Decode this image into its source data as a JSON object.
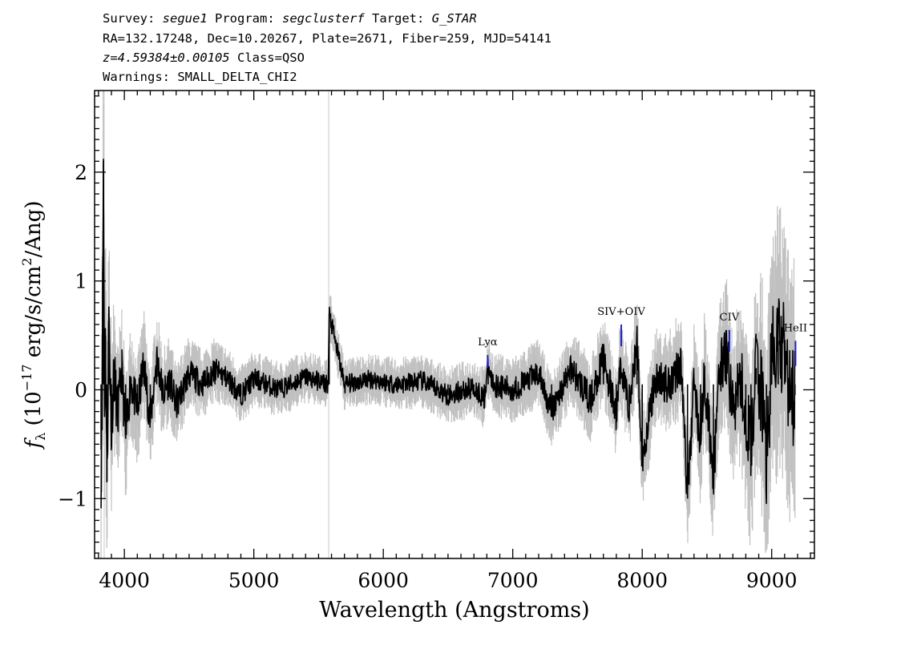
{
  "header": {
    "survey_label": "Survey:",
    "survey": "segue1",
    "program_label": "Program:",
    "program": "segclusterf",
    "target_label": "Target:",
    "target": "G_STAR",
    "coords_line": "RA=132.17248, Dec=10.20267, Plate=2671, Fiber=259, MJD=54141",
    "redshift": "z=4.59384±0.00105",
    "class_text": "Class=QSO",
    "warnings_line": "Warnings: SMALL_DELTA_CHI2"
  },
  "chart_data": {
    "type": "line",
    "title": "",
    "xlabel": "Wavelength (Angstroms)",
    "ylabel_parts": {
      "f": "f",
      "sub": "λ",
      "open": " (10",
      "exp": "−17",
      "mid": " erg/s/cm",
      "exp2": "2",
      "close": "/Ang)"
    },
    "xlim": [
      3770,
      9330
    ],
    "ylim": [
      -1.55,
      2.75
    ],
    "x_ticks": [
      4000,
      5000,
      6000,
      7000,
      8000,
      9000
    ],
    "x_tick_labels": [
      "4000",
      "5000",
      "6000",
      "7000",
      "8000",
      "9000"
    ],
    "y_ticks": [
      -1,
      0,
      1,
      2
    ],
    "y_tick_labels": [
      "−1",
      "0",
      "1",
      "2"
    ],
    "grid": false,
    "vertical_reference_lines_x": [
      3844,
      5578
    ],
    "series": [
      {
        "role": "flux",
        "color": "#000000",
        "x": [
          3820,
          3830,
          3838,
          3846,
          3855,
          3865,
          3880,
          3900,
          3920,
          3950,
          3980,
          4010,
          4050,
          4100,
          4150,
          4200,
          4250,
          4300,
          4350,
          4400,
          4500,
          4600,
          4700,
          4800,
          4900,
          5000,
          5200,
          5400,
          5575,
          5582,
          5700,
          5900,
          6100,
          6300,
          6500,
          6700,
          6780,
          6810,
          6850,
          7000,
          7200,
          7300,
          7450,
          7600,
          7700,
          7800,
          7830,
          7900,
          7960,
          8000,
          8100,
          8200,
          8300,
          8350,
          8400,
          8450,
          8480,
          8550,
          8600,
          8650,
          8700,
          8760,
          8800,
          8840,
          8880,
          8920,
          8960,
          9000,
          9050,
          9100,
          9150,
          9180
        ],
        "y": [
          -0.55,
          0.2,
          2.1,
          -0.1,
          0.5,
          -0.85,
          0.7,
          -0.35,
          0.15,
          -0.25,
          0.2,
          -0.45,
          0.1,
          -0.2,
          0.25,
          -0.3,
          0.3,
          -0.05,
          0.1,
          -0.15,
          0.15,
          0.05,
          0.18,
          0.1,
          -0.05,
          0.1,
          0.0,
          0.12,
          0.05,
          0.7,
          0.05,
          0.1,
          0.05,
          0.08,
          -0.05,
          0.02,
          -0.08,
          0.2,
          0.05,
          0.0,
          0.15,
          -0.2,
          0.2,
          -0.1,
          0.3,
          -0.25,
          0.25,
          -0.15,
          0.45,
          -0.65,
          0.1,
          0.05,
          0.25,
          -1.0,
          0.1,
          -0.5,
          0.15,
          -0.8,
          0.2,
          0.35,
          -0.2,
          0.1,
          -0.25,
          -0.5,
          0.2,
          0.0,
          -0.65,
          0.25,
          0.45,
          0.3,
          -0.1,
          -0.05
        ]
      },
      {
        "role": "error",
        "color": "#c0c0c0",
        "x": [
          3830,
          3845,
          3880,
          3950,
          4050,
          4200,
          4400,
          4700,
          5000,
          5500,
          6000,
          6500,
          6900,
          7300,
          7700,
          8000,
          8300,
          8500,
          8700,
          8850,
          8950,
          9050,
          9150,
          9180
        ],
        "y": [
          1.2,
          1.1,
          0.75,
          0.55,
          0.45,
          0.4,
          0.32,
          0.25,
          0.22,
          0.2,
          0.2,
          0.22,
          0.25,
          0.28,
          0.35,
          0.38,
          0.42,
          0.5,
          0.6,
          0.85,
          1.0,
          1.1,
          1.0,
          1.2
        ]
      }
    ],
    "line_marks": [
      {
        "label": "Lyα",
        "x": 6806,
        "y_bottom": 0.2,
        "y_top": 0.32
      },
      {
        "label": "SIV+OIV",
        "x": 7838,
        "y_bottom": 0.4,
        "y_top": 0.6
      },
      {
        "label": "CIV",
        "x": 8673,
        "y_bottom": 0.35,
        "y_top": 0.55
      },
      {
        "label": "HeII",
        "x": 9184,
        "y_bottom": 0.22,
        "y_top": 0.45
      }
    ],
    "line_mark_color": "#1f1fe0"
  }
}
